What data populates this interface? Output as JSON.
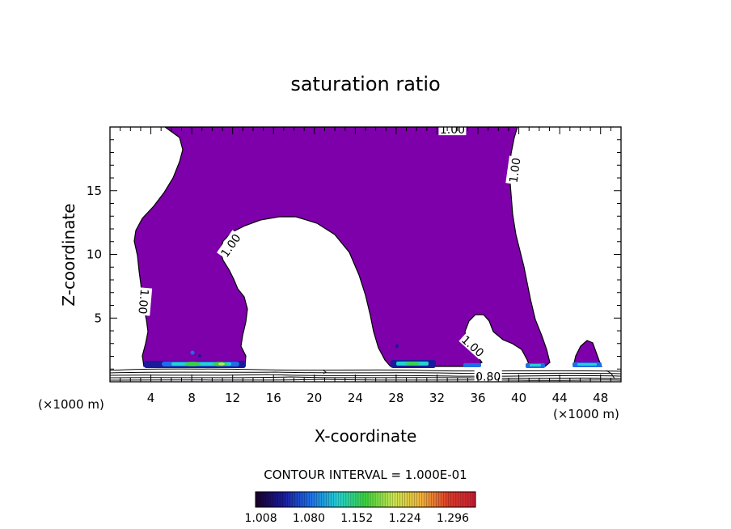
{
  "chart_data": {
    "type": "heatmap",
    "title": "saturation ratio",
    "xlabel": "X-coordinate",
    "ylabel": "Z-coordinate",
    "x_unit_left": "(×1000 m)",
    "x_unit_right": "(×1000 m)",
    "xlim": [
      0,
      50
    ],
    "ylim": [
      0,
      20
    ],
    "x_ticks": [
      4,
      8,
      12,
      16,
      20,
      24,
      28,
      32,
      36,
      40,
      44,
      48
    ],
    "y_ticks": [
      5,
      10,
      15
    ],
    "contour_labels": [
      {
        "text": "1.00",
        "x": 33.5,
        "y": 19.8,
        "angle": 0
      },
      {
        "text": "1.00",
        "x": 39.6,
        "y": 16.6,
        "angle": -82
      },
      {
        "text": "1.00",
        "x": 11.8,
        "y": 10.7,
        "angle": -55
      },
      {
        "text": "1.00",
        "x": 3.3,
        "y": 6.3,
        "angle": 95
      },
      {
        "text": "1.00",
        "x": 35.5,
        "y": 2.8,
        "angle": 42
      },
      {
        "text": "0.80",
        "x": 37.0,
        "y": 0.4,
        "angle": 0
      }
    ],
    "contour_interval": "CONTOUR INTERVAL = 1.000E-01",
    "colorbar": {
      "min": 1.0,
      "max": 1.33,
      "tick_labels": [
        "1.008",
        "1.080",
        "1.152",
        "1.224",
        "1.296"
      ],
      "colors": [
        "#1b0028",
        "#1a1a9a",
        "#1e6ee6",
        "#22d2d2",
        "#3cd23c",
        "#c8e650",
        "#f0b43c",
        "#dc3c28",
        "#c81e32"
      ]
    },
    "fill_color": "#7d00aa"
  }
}
